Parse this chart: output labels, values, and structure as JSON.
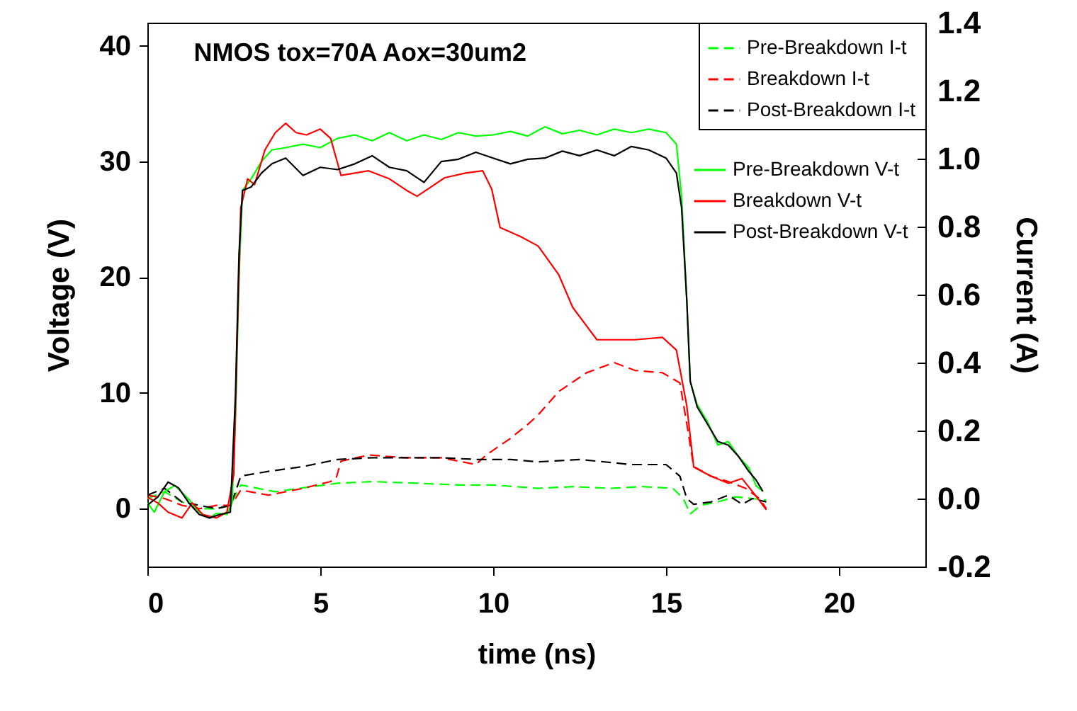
{
  "chart_data": {
    "type": "line",
    "title": "NMOS tox=70A Aox=30um2",
    "xlabel": "time (ns)",
    "ylabel": "Voltage (V)",
    "y2label": "Current (A)",
    "xlim": [
      0,
      22.5
    ],
    "xticks": [
      0,
      5,
      10,
      15,
      20
    ],
    "ylim": [
      -5,
      42
    ],
    "yticks": [
      0,
      10,
      20,
      30,
      40
    ],
    "y2lim": [
      -0.2,
      1.4
    ],
    "y2ticks": [
      -0.2,
      {
        "value": 0,
        "label": "0.0"
      },
      0.2,
      0.4,
      0.6,
      0.8,
      {
        "value": 1,
        "label": "1.0"
      },
      1.2,
      1.4
    ],
    "legend": "top right",
    "grid": false,
    "marker": "none",
    "series": [
      {
        "name": "Pre-Breakdown I-t",
        "color": "#00ff00",
        "axis": "y2",
        "line_style": "dashed",
        "x": [
          0,
          0.5,
          1,
          1.5,
          2,
          2.4,
          2.55,
          2.7,
          3.7,
          4.4,
          5.5,
          6.5,
          7.8,
          9,
          10,
          11.3,
          12.3,
          13.4,
          14.3,
          15.2,
          15.5,
          15.7,
          16,
          16.5,
          17,
          17.5,
          17.9
        ],
        "values": [
          0.0,
          0.02,
          -0.01,
          -0.03,
          -0.03,
          -0.02,
          0.01,
          0.04,
          0.02,
          0.03,
          0.045,
          0.05,
          0.045,
          0.04,
          0.04,
          0.03,
          0.035,
          0.03,
          0.035,
          0.03,
          0.0,
          -0.045,
          -0.02,
          -0.01,
          0.005,
          0.0,
          -0.005
        ]
      },
      {
        "name": "Breakdown I-t",
        "color": "#ff0000",
        "axis": "y2",
        "line_style": "dashed",
        "x": [
          0,
          0.5,
          1,
          1.5,
          2,
          2.4,
          2.55,
          2.7,
          3.5,
          4.5,
          5.3,
          5.46,
          5.6,
          6.4,
          7.5,
          8.5,
          9.5,
          9.8,
          10.5,
          11,
          11.3,
          11.9,
          12.7,
          13.5,
          14.1,
          14.9,
          15.4,
          15.6,
          15.8,
          16.3,
          16.8,
          17.3,
          17.7,
          17.9
        ],
        "values": [
          0.01,
          0.0,
          -0.02,
          -0.03,
          -0.02,
          -0.02,
          0.0,
          0.025,
          0.01,
          0.03,
          0.05,
          0.06,
          0.11,
          0.128,
          0.12,
          0.12,
          0.1,
          0.128,
          0.177,
          0.218,
          0.246,
          0.315,
          0.37,
          0.4,
          0.377,
          0.37,
          0.34,
          0.22,
          0.094,
          0.066,
          0.05,
          0.03,
          0.0,
          -0.03
        ]
      },
      {
        "name": "Post-Breakdown I-t",
        "color": "#000000",
        "axis": "y2",
        "line_style": "dashed",
        "x": [
          0,
          0.5,
          1,
          1.5,
          2,
          2.4,
          2.55,
          2.7,
          3.5,
          4.5,
          5.5,
          6.5,
          7.5,
          8.5,
          9.5,
          10.5,
          11.3,
          12.5,
          14,
          15,
          15.4,
          15.6,
          15.8,
          16.3,
          16.8,
          17.2,
          17.5,
          17.9
        ],
        "values": [
          0.01,
          0.03,
          -0.01,
          -0.02,
          -0.03,
          -0.02,
          0.02,
          0.066,
          0.08,
          0.094,
          0.115,
          0.12,
          0.12,
          0.12,
          0.115,
          0.115,
          0.108,
          0.115,
          0.1,
          0.1,
          0.066,
          0.0,
          -0.017,
          -0.01,
          0.01,
          -0.017,
          0.0,
          -0.01
        ]
      },
      {
        "name": "Pre-Breakdown V-t",
        "color": "#00ff00",
        "line_style": "solid",
        "x": [
          0,
          0.2,
          0.5,
          0.8,
          1.2,
          1.5,
          1.8,
          2,
          2.3,
          2.45,
          2.55,
          2.65,
          2.75,
          3,
          3.3,
          3.6,
          4,
          4.5,
          5,
          5.5,
          6,
          6.5,
          7,
          7.5,
          8,
          8.5,
          9,
          9.5,
          10,
          10.5,
          11,
          11.5,
          12,
          12.5,
          13,
          13.5,
          14,
          14.5,
          15,
          15.3,
          15.45,
          15.6,
          15.7,
          15.9,
          16.2,
          16.5,
          16.8,
          17.1,
          17.4,
          17.6,
          17.8
        ],
        "values": [
          0.5,
          -0.3,
          1.5,
          2.0,
          0.8,
          -0.3,
          -0.8,
          -0.4,
          -0.5,
          0.5,
          8,
          20,
          27.5,
          28.5,
          30,
          31,
          31.2,
          31.5,
          31.2,
          32,
          32.3,
          31.8,
          32.5,
          31.8,
          32.3,
          31.9,
          32.5,
          32.2,
          32.3,
          32.6,
          32.2,
          33,
          32.4,
          32.7,
          32.3,
          32.8,
          32.5,
          32.8,
          32.5,
          31.5,
          27,
          18,
          11,
          9,
          7.5,
          5.5,
          5.8,
          4.5,
          3.5,
          2.0,
          1.5
        ]
      },
      {
        "name": "Breakdown V-t",
        "color": "#ff0000",
        "line_style": "solid",
        "x": [
          0,
          0.3,
          0.6,
          1,
          1.3,
          1.6,
          2,
          2.3,
          2.5,
          2.6,
          2.7,
          2.9,
          3.1,
          3.4,
          3.7,
          4,
          4.3,
          4.6,
          5,
          5.3,
          5.6,
          6.4,
          7,
          7.5,
          7.8,
          8.6,
          9.2,
          9.7,
          9.96,
          10.2,
          10.8,
          11.3,
          11.9,
          12.3,
          12.7,
          13,
          14.1,
          14.9,
          15.3,
          15.6,
          15.8,
          16.3,
          16.8,
          17.2,
          17.6,
          17.9
        ],
        "values": [
          1.0,
          0.5,
          -0.3,
          -0.8,
          0.5,
          -0.5,
          -0.8,
          -0.3,
          3,
          15,
          26,
          28.5,
          28,
          31,
          32.5,
          33.3,
          32.5,
          32.3,
          32.8,
          32,
          28.8,
          29.2,
          28.5,
          27.5,
          27.0,
          28.6,
          29.0,
          29.2,
          27.6,
          24.3,
          23.5,
          22.7,
          20.2,
          17.4,
          15.8,
          14.6,
          14.6,
          14.8,
          13.7,
          8.9,
          3.6,
          2.8,
          2.2,
          2.6,
          1.1,
          -0.1
        ]
      },
      {
        "name": "Post-Breakdown V-t",
        "color": "#000000",
        "line_style": "solid",
        "x": [
          0,
          0.3,
          0.6,
          0.9,
          1.2,
          1.5,
          1.8,
          2.1,
          2.4,
          2.55,
          2.65,
          2.75,
          3,
          3.3,
          3.6,
          4,
          4.5,
          5,
          5.5,
          6,
          6.5,
          7,
          7.5,
          8,
          8.5,
          9,
          9.5,
          10,
          10.5,
          11,
          11.5,
          12,
          12.5,
          13,
          13.5,
          14,
          14.5,
          15,
          15.3,
          15.45,
          15.6,
          15.7,
          15.9,
          16.2,
          16.5,
          16.8,
          17.1,
          17.4,
          17.6,
          17.8
        ],
        "values": [
          0.3,
          1.0,
          2.3,
          1.8,
          0.5,
          -0.5,
          -0.8,
          -0.5,
          -0.3,
          10,
          22,
          27.5,
          27.8,
          29,
          29.8,
          30.3,
          28.8,
          29.5,
          29.3,
          29.8,
          30.5,
          29.5,
          29.2,
          28.2,
          30,
          30.2,
          30.8,
          30.3,
          29.8,
          30.2,
          30.3,
          30.9,
          30.5,
          31,
          30.5,
          31.3,
          31,
          30.3,
          29,
          26,
          18,
          11,
          8.8,
          7.3,
          5.8,
          5.5,
          4.5,
          3.2,
          2.5,
          1.5
        ]
      }
    ]
  }
}
